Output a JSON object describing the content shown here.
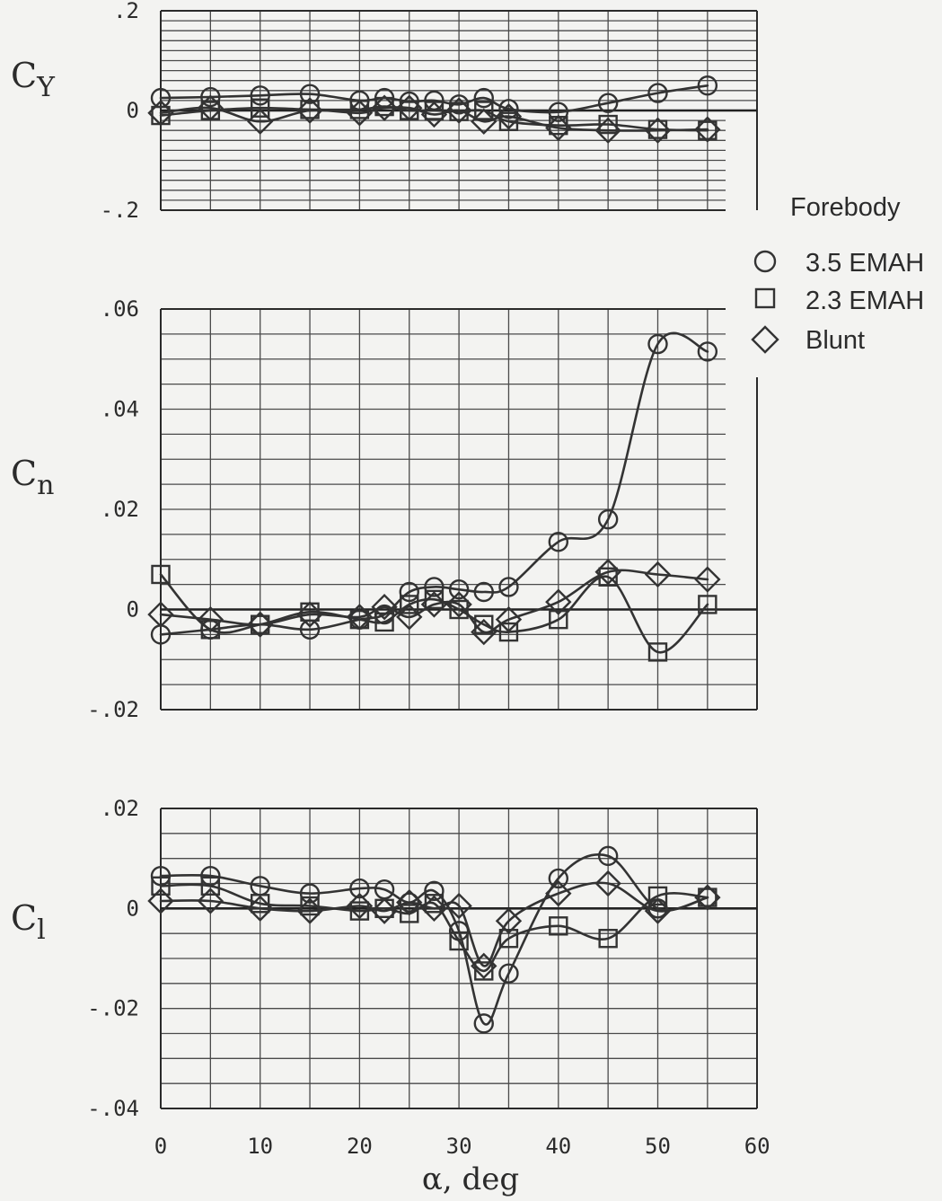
{
  "legend": {
    "title": "Forebody",
    "items": [
      {
        "label": "3.5 EMAH",
        "symbol": "circle"
      },
      {
        "label": "2.3 EMAH",
        "symbol": "square"
      },
      {
        "label": "Blunt",
        "symbol": "diamond"
      }
    ]
  },
  "chart_data": [
    {
      "type": "line",
      "ylabel_main": "C",
      "ylabel_sub": "Y",
      "ylim": [
        -0.2,
        0.2
      ],
      "yticks": [
        0.2,
        0,
        -0.2
      ],
      "ytick_labels": [
        ".2",
        "0",
        "-.2"
      ],
      "series": [
        {
          "name": "3.5 EMAH",
          "symbol": "circle",
          "points": [
            [
              0,
              0.025
            ],
            [
              5,
              0.027
            ],
            [
              10,
              0.03
            ],
            [
              15,
              0.033
            ],
            [
              20,
              0.02
            ],
            [
              22.5,
              0.025
            ],
            [
              25,
              0.018
            ],
            [
              27.5,
              0.02
            ],
            [
              30,
              0.012
            ],
            [
              32.5,
              0.025
            ],
            [
              35,
              0.003
            ],
            [
              40,
              -0.003
            ],
            [
              45,
              0.015
            ],
            [
              50,
              0.035
            ],
            [
              55,
              0.05
            ]
          ]
        },
        {
          "name": "2.3 EMAH",
          "symbol": "square",
          "points": [
            [
              0,
              -0.01
            ],
            [
              5,
              0
            ],
            [
              10,
              0.005
            ],
            [
              15,
              0.002
            ],
            [
              20,
              0.002
            ],
            [
              22.5,
              0.008
            ],
            [
              25,
              0
            ],
            [
              27.5,
              0
            ],
            [
              30,
              -0.002
            ],
            [
              32.5,
              0
            ],
            [
              35,
              -0.022
            ],
            [
              40,
              -0.03
            ],
            [
              45,
              -0.028
            ],
            [
              50,
              -0.038
            ],
            [
              55,
              -0.04
            ]
          ]
        },
        {
          "name": "Blunt",
          "symbol": "diamond",
          "points": [
            [
              0,
              -0.005
            ],
            [
              5,
              0.005
            ],
            [
              10,
              -0.022
            ],
            [
              15,
              0
            ],
            [
              20,
              -0.005
            ],
            [
              22.5,
              0.005
            ],
            [
              25,
              0.005
            ],
            [
              27.5,
              -0.008
            ],
            [
              30,
              0
            ],
            [
              32.5,
              -0.022
            ],
            [
              35,
              -0.012
            ],
            [
              40,
              -0.035
            ],
            [
              45,
              -0.04
            ],
            [
              50,
              -0.04
            ],
            [
              55,
              -0.038
            ]
          ]
        }
      ]
    },
    {
      "type": "line",
      "ylabel_main": "C",
      "ylabel_sub": "n",
      "ylim": [
        -0.02,
        0.06
      ],
      "yticks": [
        0.06,
        0.04,
        0.02,
        0,
        -0.02
      ],
      "ytick_labels": [
        ".06",
        ".04",
        ".02",
        "0",
        "-.02"
      ],
      "series": [
        {
          "name": "3.5 EMAH",
          "symbol": "circle",
          "points": [
            [
              0,
              -0.005
            ],
            [
              5,
              -0.004
            ],
            [
              10,
              -0.003
            ],
            [
              15,
              -0.004
            ],
            [
              20,
              -0.002
            ],
            [
              22.5,
              -0.001
            ],
            [
              25,
              0.0035
            ],
            [
              27.5,
              0.0045
            ],
            [
              30,
              0.004
            ],
            [
              32.5,
              0.0035
            ],
            [
              35,
              0.0045
            ],
            [
              40,
              0.0135
            ],
            [
              45,
              0.018
            ],
            [
              50,
              0.053
            ],
            [
              55,
              0.0515
            ]
          ]
        },
        {
          "name": "2.3 EMAH",
          "symbol": "square",
          "points": [
            [
              0,
              0.007
            ],
            [
              5,
              -0.004
            ],
            [
              10,
              -0.003
            ],
            [
              15,
              -0.0005
            ],
            [
              20,
              -0.002
            ],
            [
              22.5,
              -0.0025
            ],
            [
              25,
              0.001
            ],
            [
              27.5,
              0.002
            ],
            [
              30,
              0
            ],
            [
              32.5,
              -0.003
            ],
            [
              35,
              -0.0045
            ],
            [
              40,
              -0.002
            ],
            [
              45,
              0.0065
            ],
            [
              50,
              -0.0085
            ],
            [
              55,
              0.001
            ]
          ]
        },
        {
          "name": "Blunt",
          "symbol": "diamond",
          "points": [
            [
              0,
              -0.001
            ],
            [
              5,
              -0.002
            ],
            [
              10,
              -0.003
            ],
            [
              15,
              -0.001
            ],
            [
              20,
              -0.0015
            ],
            [
              22.5,
              0.0005
            ],
            [
              25,
              -0.0015
            ],
            [
              27.5,
              0.001
            ],
            [
              30,
              0.001
            ],
            [
              32.5,
              -0.0045
            ],
            [
              35,
              -0.002
            ],
            [
              40,
              0.0015
            ],
            [
              45,
              0.0075
            ],
            [
              50,
              0.007
            ],
            [
              55,
              0.006
            ]
          ]
        }
      ]
    },
    {
      "type": "line",
      "ylabel_main": "C",
      "ylabel_sub": "l",
      "xlabel": "α, deg",
      "xlim": [
        0,
        60
      ],
      "xticks": [
        0,
        10,
        20,
        30,
        40,
        50,
        60
      ],
      "xtick_labels": [
        "0",
        "10",
        "20",
        "30",
        "40",
        "50",
        "60"
      ],
      "ylim": [
        -0.04,
        0.02
      ],
      "yticks": [
        0.02,
        0,
        -0.02,
        -0.04
      ],
      "ytick_labels": [
        ".02",
        "0",
        "-.02",
        "-.04"
      ],
      "series": [
        {
          "name": "3.5 EMAH",
          "symbol": "circle",
          "points": [
            [
              0,
              0.0065
            ],
            [
              5,
              0.0065
            ],
            [
              10,
              0.0045
            ],
            [
              15,
              0.003
            ],
            [
              20,
              0.004
            ],
            [
              22.5,
              0.0038
            ],
            [
              25,
              0.0012
            ],
            [
              27.5,
              0.0035
            ],
            [
              30,
              -0.0045
            ],
            [
              32.5,
              -0.023
            ],
            [
              35,
              -0.013
            ],
            [
              40,
              0.006
            ],
            [
              45,
              0.0105
            ],
            [
              50,
              0
            ],
            [
              55,
              0.0022
            ]
          ]
        },
        {
          "name": "2.3 EMAH",
          "symbol": "square",
          "points": [
            [
              0,
              0.0045
            ],
            [
              5,
              0.0045
            ],
            [
              10,
              0.001
            ],
            [
              15,
              0.0005
            ],
            [
              20,
              -0.0005
            ],
            [
              22.5,
              0
            ],
            [
              25,
              -0.001
            ],
            [
              27.5,
              0.001
            ],
            [
              30,
              -0.0065
            ],
            [
              32.5,
              -0.0125
            ],
            [
              35,
              -0.006
            ],
            [
              40,
              -0.0035
            ],
            [
              45,
              -0.006
            ],
            [
              50,
              0.0025
            ],
            [
              55,
              0.0022
            ]
          ]
        },
        {
          "name": "Blunt",
          "symbol": "diamond",
          "points": [
            [
              0,
              0.0015
            ],
            [
              5,
              0.0015
            ],
            [
              10,
              0
            ],
            [
              15,
              -0.0005
            ],
            [
              20,
              0.0005
            ],
            [
              22.5,
              -0.0005
            ],
            [
              25,
              0.0012
            ],
            [
              27.5,
              0
            ],
            [
              30,
              0.0005
            ],
            [
              32.5,
              -0.0115
            ],
            [
              35,
              -0.0025
            ],
            [
              40,
              0.003
            ],
            [
              45,
              0.005
            ],
            [
              50,
              -0.0005
            ],
            [
              55,
              0.0022
            ]
          ]
        }
      ]
    }
  ]
}
